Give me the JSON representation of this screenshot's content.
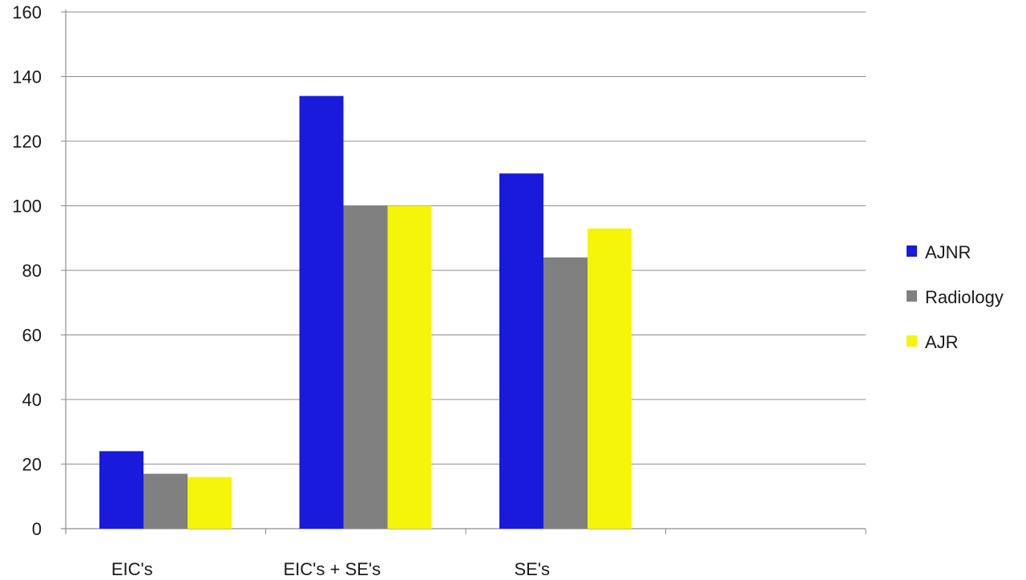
{
  "chart_data": {
    "type": "bar",
    "categories": [
      "EIC's",
      "EIC's + SE's",
      "SE's",
      ""
    ],
    "series": [
      {
        "name": "AJNR",
        "values": [
          24,
          134,
          110,
          null
        ],
        "color": "#1a1adc"
      },
      {
        "name": "Radiology",
        "values": [
          17,
          100,
          84,
          null
        ],
        "color": "#808080"
      },
      {
        "name": "AJR",
        "values": [
          16,
          100,
          93,
          null
        ],
        "color": "#f5f50a"
      }
    ],
    "ylim": [
      0,
      160
    ],
    "yticks": [
      0,
      20,
      40,
      60,
      80,
      100,
      120,
      140,
      160
    ],
    "grid": true,
    "legend_position": "right"
  }
}
